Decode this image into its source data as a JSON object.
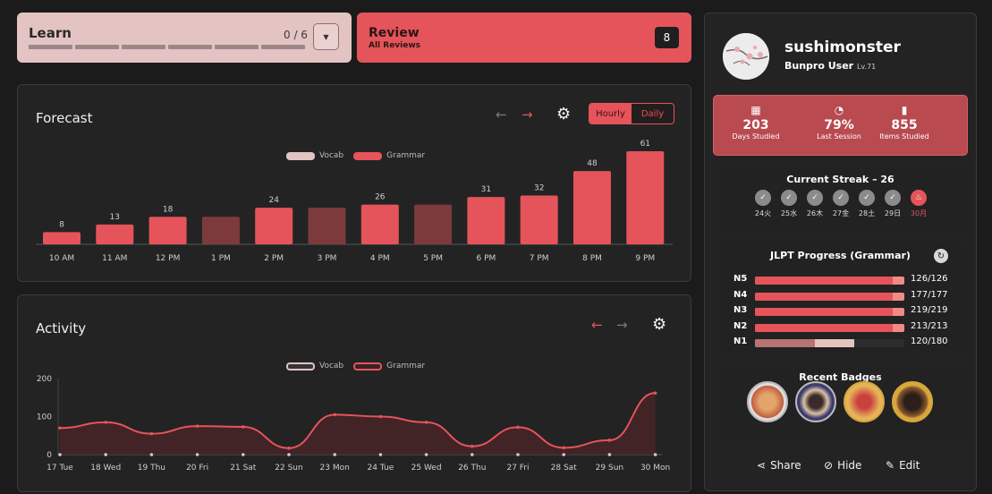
{
  "learn": {
    "title": "Learn",
    "progress": "0 / 6",
    "completed": 0,
    "total": 6,
    "dropdown_icon": "caret-down-icon"
  },
  "review": {
    "title": "Review",
    "subtitle": "All Reviews",
    "count": "8"
  },
  "forecast": {
    "title": "Forecast",
    "toggle": {
      "hourly": "Hourly",
      "daily": "Daily",
      "selected": "Hourly"
    },
    "legend": {
      "vocab": "Vocab",
      "grammar": "Grammar"
    }
  },
  "activity": {
    "title": "Activity",
    "legend": {
      "vocab": "Vocab",
      "grammar": "Grammar"
    }
  },
  "chart_data": [
    {
      "type": "bar",
      "chart": "forecast",
      "categories": [
        "10 AM",
        "11 AM",
        "12 PM",
        "1 PM",
        "2 PM",
        "3 PM",
        "4 PM",
        "5 PM",
        "6 PM",
        "7 PM",
        "8 PM",
        "9 PM"
      ],
      "values": [
        8,
        13,
        18,
        18,
        24,
        24,
        26,
        26,
        31,
        32,
        48,
        61
      ],
      "labels": [
        "8",
        "13",
        "18",
        "",
        "24",
        "",
        "26",
        "",
        "31",
        "32",
        "48",
        "61"
      ],
      "highlighted": [
        true,
        true,
        true,
        false,
        true,
        false,
        true,
        false,
        true,
        true,
        true,
        true
      ],
      "legend": [
        "Vocab",
        "Grammar"
      ],
      "ylim": [
        0,
        61
      ]
    },
    {
      "type": "area",
      "chart": "activity",
      "categories": [
        "17 Tue",
        "18 Wed",
        "19 Thu",
        "20 Fri",
        "21 Sat",
        "22 Sun",
        "23 Mon",
        "24 Tue",
        "25 Wed",
        "26 Thu",
        "27 Fri",
        "28 Sat",
        "29 Sun",
        "30 Mon"
      ],
      "series": [
        {
          "name": "Grammar",
          "values": [
            70,
            85,
            55,
            75,
            73,
            17,
            105,
            100,
            85,
            22,
            72,
            18,
            38,
            162
          ]
        },
        {
          "name": "Vocab",
          "values": [
            0,
            0,
            0,
            0,
            0,
            0,
            0,
            0,
            0,
            0,
            0,
            0,
            0,
            0
          ]
        }
      ],
      "yticks": [
        "0",
        "100",
        "200"
      ],
      "ylim": [
        0,
        200
      ]
    }
  ],
  "profile": {
    "username": "sushimonster",
    "role": "Bunpro User",
    "level": "Lv.71",
    "stats": [
      {
        "icon": "calendar-icon",
        "value": "203",
        "label": "Days Studied"
      },
      {
        "icon": "gauge-icon",
        "value": "79%",
        "label": "Last Session"
      },
      {
        "icon": "bar-chart-icon",
        "value": "855",
        "label": "Items Studied"
      }
    ],
    "streak": {
      "title": "Current Streak – 26",
      "days": [
        "24火",
        "25水",
        "26木",
        "27金",
        "28土",
        "29日",
        "30月"
      ]
    },
    "jlpt": {
      "title": "JLPT Progress (Grammar)",
      "rows": [
        {
          "level": "N5",
          "text": "126/126",
          "done": 126,
          "total": 126
        },
        {
          "level": "N4",
          "text": "177/177",
          "done": 177,
          "total": 177
        },
        {
          "level": "N3",
          "text": "219/219",
          "done": 219,
          "total": 219
        },
        {
          "level": "N2",
          "text": "213/213",
          "done": 213,
          "total": 213
        },
        {
          "level": "N1",
          "text": "120/180",
          "done": 120,
          "total": 180
        }
      ]
    },
    "badges": {
      "title": "Recent Badges"
    },
    "actions": {
      "share": "Share",
      "hide": "Hide",
      "edit": "Edit"
    }
  },
  "colors": {
    "accent": "#e5545a",
    "learn_bg": "#e4c3c3",
    "muted_bar": "#7d3a3d",
    "vocab": "#e0c4c4"
  }
}
